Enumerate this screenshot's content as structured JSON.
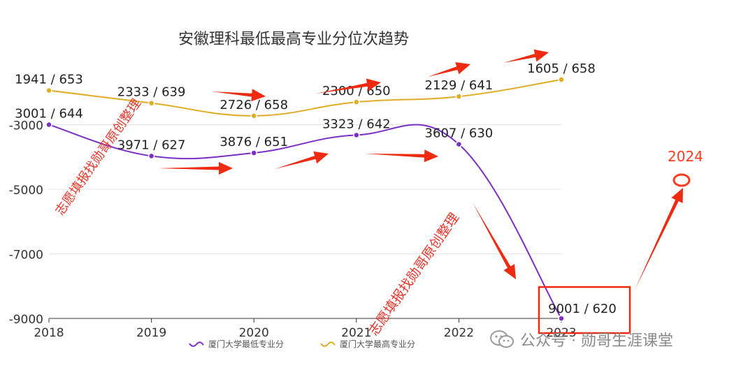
{
  "chart_data": {
    "type": "line",
    "title": "安徽理科最低最高专业分位次趋势",
    "x": [
      "2018",
      "2019",
      "2020",
      "2021",
      "2022",
      "2023"
    ],
    "ylim": [
      -9000,
      -1000
    ],
    "yticks": [
      "-3000",
      "-5000",
      "-7000",
      "-9000"
    ],
    "ytick_values": [
      -3000,
      -5000,
      -7000,
      -9000
    ],
    "grid": true,
    "legend_position": "bottom",
    "series": [
      {
        "name": "厦门大学最低专业分",
        "color": "#7b2fc4",
        "values": [
          -3001,
          -3971,
          -3876,
          -3323,
          -3607,
          -9001
        ],
        "labels": [
          "3001 / 644",
          "3971 / 627",
          "3876 / 651",
          "3323 / 642",
          "3607 / 630",
          "9001 / 620"
        ]
      },
      {
        "name": "厦门大学最高专业分",
        "color": "#e0ac24",
        "values": [
          -1941,
          -2333,
          -2726,
          -2300,
          -2129,
          -1605
        ],
        "labels": [
          "1941 / 653",
          "2333 / 639",
          "2726 / 658",
          "2300 / 650",
          "2129 / 641",
          "1605 / 658"
        ]
      }
    ],
    "annotations": {
      "next_year": "2024",
      "watermark": "志愿填报找勋哥原创整理"
    }
  },
  "footer": {
    "account": "公众号 · 勋哥生涯课堂"
  },
  "colors": {
    "arrow": "#ee2a10",
    "highlight_box": "#ee2a10",
    "grid": "#e6e6e6",
    "axis": "#333333"
  }
}
